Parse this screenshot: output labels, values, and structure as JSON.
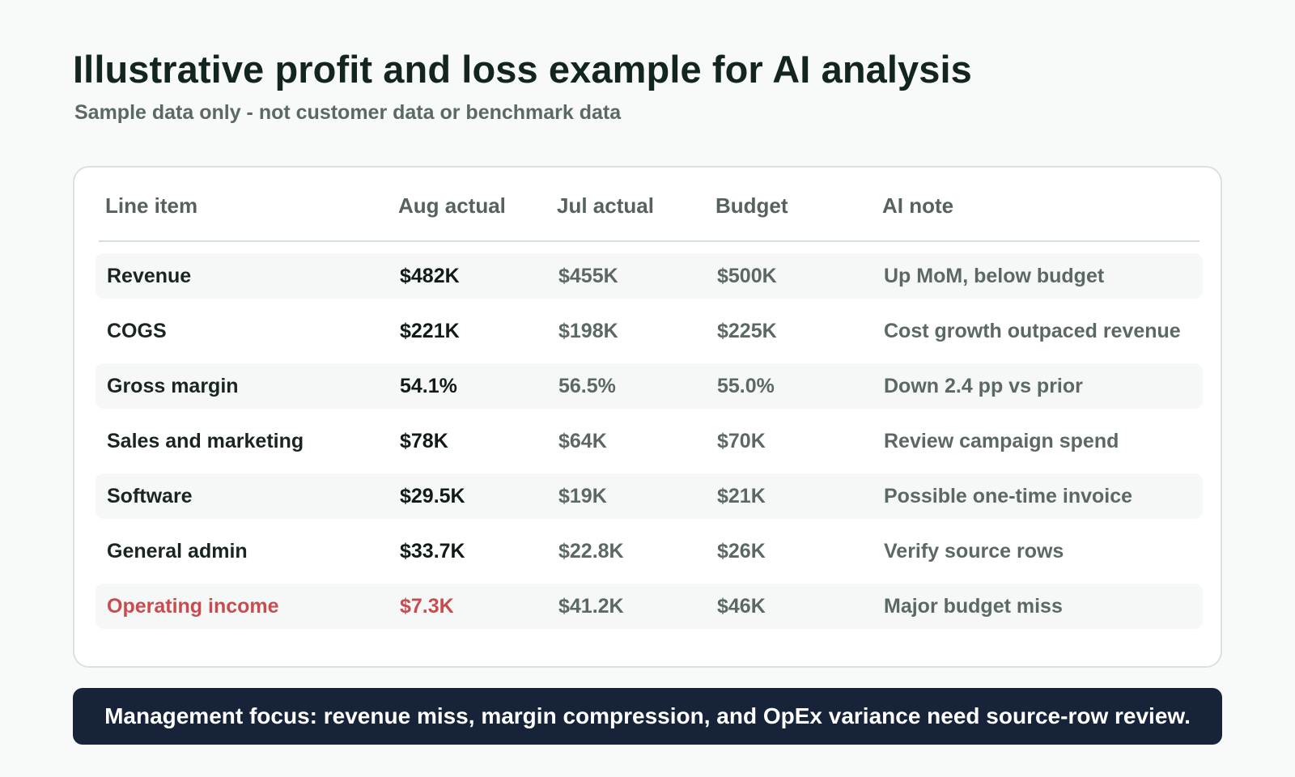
{
  "page": {
    "title": "Illustrative profit and loss example for AI analysis",
    "subtitle": "Sample data only - not customer data or benchmark data"
  },
  "table": {
    "headers": [
      "Line item",
      "Aug actual",
      "Jul actual",
      "Budget",
      "AI note"
    ],
    "rows": [
      [
        "Revenue",
        "$482K",
        "$455K",
        "$500K",
        "Up MoM, below budget"
      ],
      [
        "COGS",
        "$221K",
        "$198K",
        "$225K",
        "Cost growth outpaced revenue"
      ],
      [
        "Gross margin",
        "54.1%",
        "56.5%",
        "55.0%",
        "Down 2.4 pp vs prior"
      ],
      [
        "Sales and marketing",
        "$78K",
        "$64K",
        "$70K",
        "Review campaign spend"
      ],
      [
        "Software",
        "$29.5K",
        "$19K",
        "$21K",
        "Possible one-time invoice"
      ],
      [
        "General admin",
        "$33.7K",
        "$22.8K",
        "$26K",
        "Verify source rows"
      ],
      [
        "Operating income",
        "$7.3K",
        "$41.2K",
        "$46K",
        "Major budget miss"
      ]
    ]
  },
  "colors": {
    "alert": "#c84c4f",
    "banner": "#172339"
  },
  "callout": {
    "text": "Management focus: revenue miss, margin compression, and OpEx variance need source-row review."
  }
}
